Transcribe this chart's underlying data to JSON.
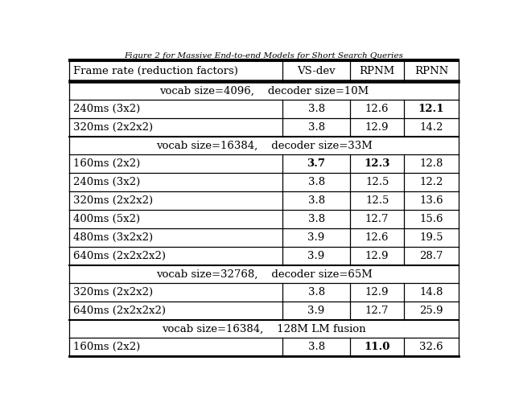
{
  "title": "Figure 2 for Massive End-to-end Models for Short Search Queries",
  "headers": [
    "Frame rate (reduction factors)",
    "VS-dev",
    "RPNM",
    "RPNN"
  ],
  "sections": [
    {
      "section_header": "vocab size=4096,    decoder size=10M",
      "rows": [
        {
          "label": "240ms (3x2)",
          "vsdev": "3.8",
          "rpnm": "12.6",
          "rpnn": "12.1",
          "bold": [
            false,
            false,
            true
          ]
        },
        {
          "label": "320ms (2x2x2)",
          "vsdev": "3.8",
          "rpnm": "12.9",
          "rpnn": "14.2",
          "bold": [
            false,
            false,
            false
          ]
        }
      ]
    },
    {
      "section_header": "vocab size=16384,    decoder size=33M",
      "rows": [
        {
          "label": "160ms (2x2)",
          "vsdev": "3.7",
          "rpnm": "12.3",
          "rpnn": "12.8",
          "bold": [
            true,
            true,
            false
          ]
        },
        {
          "label": "240ms (3x2)",
          "vsdev": "3.8",
          "rpnm": "12.5",
          "rpnn": "12.2",
          "bold": [
            false,
            false,
            false
          ]
        },
        {
          "label": "320ms (2x2x2)",
          "vsdev": "3.8",
          "rpnm": "12.5",
          "rpnn": "13.6",
          "bold": [
            false,
            false,
            false
          ]
        },
        {
          "label": "400ms (5x2)",
          "vsdev": "3.8",
          "rpnm": "12.7",
          "rpnn": "15.6",
          "bold": [
            false,
            false,
            false
          ]
        },
        {
          "label": "480ms (3x2x2)",
          "vsdev": "3.9",
          "rpnm": "12.6",
          "rpnn": "19.5",
          "bold": [
            false,
            false,
            false
          ]
        },
        {
          "label": "640ms (2x2x2x2)",
          "vsdev": "3.9",
          "rpnm": "12.9",
          "rpnn": "28.7",
          "bold": [
            false,
            false,
            false
          ]
        }
      ]
    },
    {
      "section_header": "vocab size=32768,    decoder size=65M",
      "rows": [
        {
          "label": "320ms (2x2x2)",
          "vsdev": "3.8",
          "rpnm": "12.9",
          "rpnn": "14.8",
          "bold": [
            false,
            false,
            false
          ]
        },
        {
          "label": "640ms (2x2x2x2)",
          "vsdev": "3.9",
          "rpnm": "12.7",
          "rpnn": "25.9",
          "bold": [
            false,
            false,
            false
          ]
        }
      ]
    },
    {
      "section_header": "vocab size=16384,    128M LM fusion",
      "rows": [
        {
          "label": "160ms (2x2)",
          "vsdev": "3.8",
          "rpnm": "11.0",
          "rpnn": "32.6",
          "bold": [
            false,
            true,
            false
          ]
        }
      ]
    }
  ],
  "figsize": [
    6.4,
    5.0
  ],
  "dpi": 100,
  "fontsize": 9.5,
  "font_family": "DejaVu Serif"
}
